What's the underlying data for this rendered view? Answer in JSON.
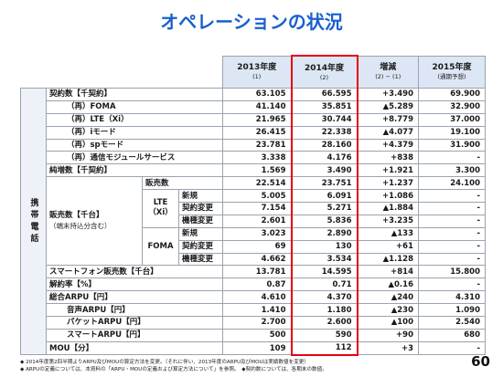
{
  "title": "オペレーションの状況",
  "table": {
    "header": [
      {
        "main": "2013年度",
        "sub": "(1)"
      },
      {
        "main": "2014年度",
        "sub": "(2)"
      },
      {
        "main": "増減",
        "sub": "(2) − (1)"
      },
      {
        "main": "2015年度",
        "sub": "(通期予想)"
      }
    ],
    "group": "携帯電話",
    "sales_block": {
      "label": "販売数【千台】",
      "note": "（端末持込分含む）",
      "subgroups": [
        "LTE（Xi）",
        "FOMA"
      ]
    },
    "rows": [
      {
        "label": "契約数【千契約】",
        "values": [
          "63.105",
          "66.595",
          "+3.490",
          "69.900"
        ]
      },
      {
        "label": "（再）FOMA",
        "values": [
          "41.140",
          "35.851",
          "▲5.289",
          "32.900"
        ]
      },
      {
        "label": "（再）LTE（Xi）",
        "values": [
          "21.965",
          "30.744",
          "+8.779",
          "37.000"
        ]
      },
      {
        "label": "（再）iモード",
        "values": [
          "26.415",
          "22.338",
          "▲4.077",
          "19.100"
        ]
      },
      {
        "label": "（再）spモード",
        "values": [
          "23.781",
          "28.160",
          "+4.379",
          "31.900"
        ]
      },
      {
        "label": "（再）通信モジュールサービス",
        "values": [
          "3.338",
          "4.176",
          "+838",
          "-"
        ]
      },
      {
        "label": "純増数【千契約】",
        "values": [
          "1.569",
          "3.490",
          "+1.921",
          "3.300"
        ]
      },
      {
        "label": "販売数",
        "values": [
          "22.514",
          "23.751",
          "+1.237",
          "24.100"
        ]
      },
      {
        "label": "新規",
        "values": [
          "5.005",
          "6.091",
          "+1.086",
          "-"
        ]
      },
      {
        "label": "契約変更",
        "values": [
          "7.154",
          "5.271",
          "▲1.884",
          "-"
        ]
      },
      {
        "label": "機種変更",
        "values": [
          "2.601",
          "5.836",
          "+3.235",
          "-"
        ]
      },
      {
        "label": "新規",
        "values": [
          "3.023",
          "2.890",
          "▲133",
          "-"
        ]
      },
      {
        "label": "契約変更",
        "values": [
          "69",
          "130",
          "+61",
          "-"
        ]
      },
      {
        "label": "機種変更",
        "values": [
          "4.662",
          "3.534",
          "▲1.128",
          "-"
        ]
      },
      {
        "label": "スマートフォン販売数【千台】",
        "values": [
          "13.781",
          "14.595",
          "+814",
          "15.800"
        ]
      },
      {
        "label": "解約率【%】",
        "values": [
          "0.87",
          "0.71",
          "▲0.16",
          "-"
        ]
      },
      {
        "label": "総合ARPU【円】",
        "values": [
          "4.610",
          "4.370",
          "▲240",
          "4.310"
        ]
      },
      {
        "label": "音声ARPU【円】",
        "values": [
          "1.410",
          "1.180",
          "▲230",
          "1.090"
        ]
      },
      {
        "label": "パケットARPU【円】",
        "values": [
          "2.700",
          "2.600",
          "▲100",
          "2.540"
        ]
      },
      {
        "label": "スマートARPU【円】",
        "values": [
          "500",
          "590",
          "+90",
          "680"
        ]
      },
      {
        "label": "MOU【分】",
        "values": [
          "109",
          "112",
          "+3",
          "-"
        ]
      }
    ]
  },
  "footnotes": [
    "◆ 2014年度第2四半期よりARPU及びMOUの算定方法を変更。（それに伴い、2013年度のARPU及びMOUは実績数値を変更）",
    "◆ ARPUの定義については、本資料の「ARPU・MOUの定義および算定方法について」を参照。　◆契約数については、各期末の数値。"
  ],
  "page_number": "60"
}
